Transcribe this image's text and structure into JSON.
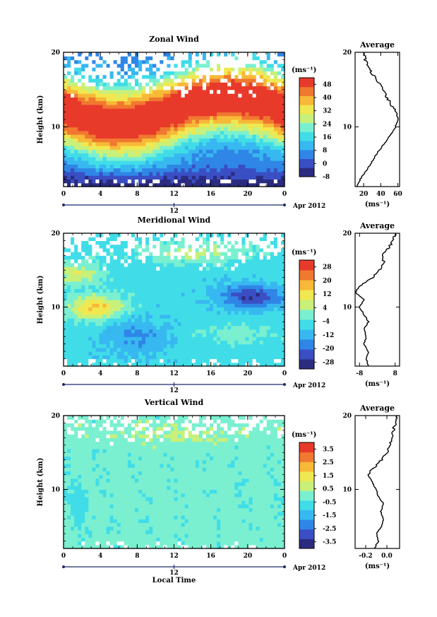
{
  "figure": {
    "xlabel": "Local Time",
    "date_label": "Apr 2012",
    "date_tick": "12"
  },
  "colors": {
    "scale": [
      "#2b2b80",
      "#3a4fc4",
      "#2f86e6",
      "#38b8f0",
      "#40dde8",
      "#7af0d0",
      "#c8f07a",
      "#f0e850",
      "#f8b838",
      "#f07830",
      "#e83a2a"
    ]
  },
  "chart_data": [
    {
      "type": "heatmap",
      "title": "Zonal Wind",
      "ylabel": "Height (km)",
      "x": [
        0,
        4,
        8,
        12,
        16,
        20,
        0
      ],
      "xlim": [
        0,
        24
      ],
      "ylim": [
        2,
        20
      ],
      "yticks": [
        10,
        20
      ],
      "colorbar_unit": "(ms⁻¹)",
      "colorbar_ticks": [
        "48",
        "40",
        "32",
        "24",
        "16",
        "8",
        "0",
        "-8"
      ],
      "colorbar_range": [
        -8,
        52
      ],
      "average": {
        "title": "Average",
        "xlabel": "(ms⁻¹)",
        "xticks": [
          "20",
          "40",
          "60"
        ],
        "xlim": [
          10,
          62
        ],
        "profile": [
          {
            "h": 2,
            "v": 12
          },
          {
            "h": 3,
            "v": 16
          },
          {
            "h": 4,
            "v": 22
          },
          {
            "h": 5,
            "v": 28
          },
          {
            "h": 6,
            "v": 33
          },
          {
            "h": 7,
            "v": 39
          },
          {
            "h": 8,
            "v": 46
          },
          {
            "h": 9,
            "v": 52
          },
          {
            "h": 10,
            "v": 57
          },
          {
            "h": 11,
            "v": 60
          },
          {
            "h": 12,
            "v": 58
          },
          {
            "h": 13,
            "v": 52
          },
          {
            "h": 14,
            "v": 47
          },
          {
            "h": 15,
            "v": 43
          },
          {
            "h": 16,
            "v": 37
          },
          {
            "h": 17,
            "v": 31
          },
          {
            "h": 18,
            "v": 25
          },
          {
            "h": 19,
            "v": 22
          },
          {
            "h": 20,
            "v": 20
          }
        ]
      }
    },
    {
      "type": "heatmap",
      "title": "Meridional Wind",
      "ylabel": "Height (km)",
      "x": [
        0,
        4,
        8,
        12,
        16,
        20,
        0
      ],
      "xlim": [
        0,
        24
      ],
      "ylim": [
        2,
        20
      ],
      "yticks": [
        10,
        20
      ],
      "colorbar_unit": "(ms⁻¹)",
      "colorbar_ticks": [
        "28",
        "20",
        "12",
        "4",
        "-4",
        "-12",
        "-20",
        "-28"
      ],
      "colorbar_range": [
        -32,
        32
      ],
      "average": {
        "title": "Average",
        "xlabel": "(ms⁻¹)",
        "xticks": [
          "-8",
          "8"
        ],
        "xlim": [
          -10,
          10
        ],
        "profile": [
          {
            "h": 2,
            "v": -4
          },
          {
            "h": 3,
            "v": -5
          },
          {
            "h": 4,
            "v": -4
          },
          {
            "h": 5,
            "v": -6
          },
          {
            "h": 6,
            "v": -5
          },
          {
            "h": 7,
            "v": -6
          },
          {
            "h": 8,
            "v": -4
          },
          {
            "h": 9,
            "v": -6
          },
          {
            "h": 10,
            "v": -8
          },
          {
            "h": 11,
            "v": -6
          },
          {
            "h": 12,
            "v": -10
          },
          {
            "h": 13,
            "v": -7
          },
          {
            "h": 14,
            "v": -2
          },
          {
            "h": 15,
            "v": 1
          },
          {
            "h": 16,
            "v": 3
          },
          {
            "h": 17,
            "v": 2
          },
          {
            "h": 18,
            "v": 5
          },
          {
            "h": 19,
            "v": 7
          },
          {
            "h": 20,
            "v": 8
          }
        ]
      }
    },
    {
      "type": "heatmap",
      "title": "Vertical Wind",
      "ylabel": "Height (km)",
      "x": [
        0,
        4,
        8,
        12,
        16,
        20,
        0
      ],
      "xlim": [
        0,
        24
      ],
      "ylim": [
        2,
        20
      ],
      "yticks": [
        10,
        20
      ],
      "colorbar_unit": "(ms⁻¹)",
      "colorbar_ticks": [
        "3.5",
        "2.5",
        "1.5",
        "0.5",
        "-0.5",
        "-1.5",
        "-2.5",
        "-3.5"
      ],
      "colorbar_range": [
        -4,
        4
      ],
      "average": {
        "title": "Average",
        "xlabel": "(ms⁻¹)",
        "xticks": [
          "-0.2",
          "0.0"
        ],
        "xlim": [
          -0.3,
          0.12
        ],
        "profile": [
          {
            "h": 2,
            "v": -0.12
          },
          {
            "h": 3,
            "v": -0.08
          },
          {
            "h": 4,
            "v": -0.1
          },
          {
            "h": 5,
            "v": -0.05
          },
          {
            "h": 6,
            "v": -0.03
          },
          {
            "h": 7,
            "v": -0.06
          },
          {
            "h": 8,
            "v": -0.03
          },
          {
            "h": 9,
            "v": -0.08
          },
          {
            "h": 10,
            "v": -0.1
          },
          {
            "h": 11,
            "v": -0.14
          },
          {
            "h": 12,
            "v": -0.18
          },
          {
            "h": 13,
            "v": -0.12
          },
          {
            "h": 14,
            "v": -0.05
          },
          {
            "h": 15,
            "v": 0.0
          },
          {
            "h": 16,
            "v": 0.03
          },
          {
            "h": 17,
            "v": 0.05
          },
          {
            "h": 18,
            "v": 0.06
          },
          {
            "h": 19,
            "v": 0.08
          },
          {
            "h": 20,
            "v": 0.1
          }
        ]
      }
    }
  ]
}
